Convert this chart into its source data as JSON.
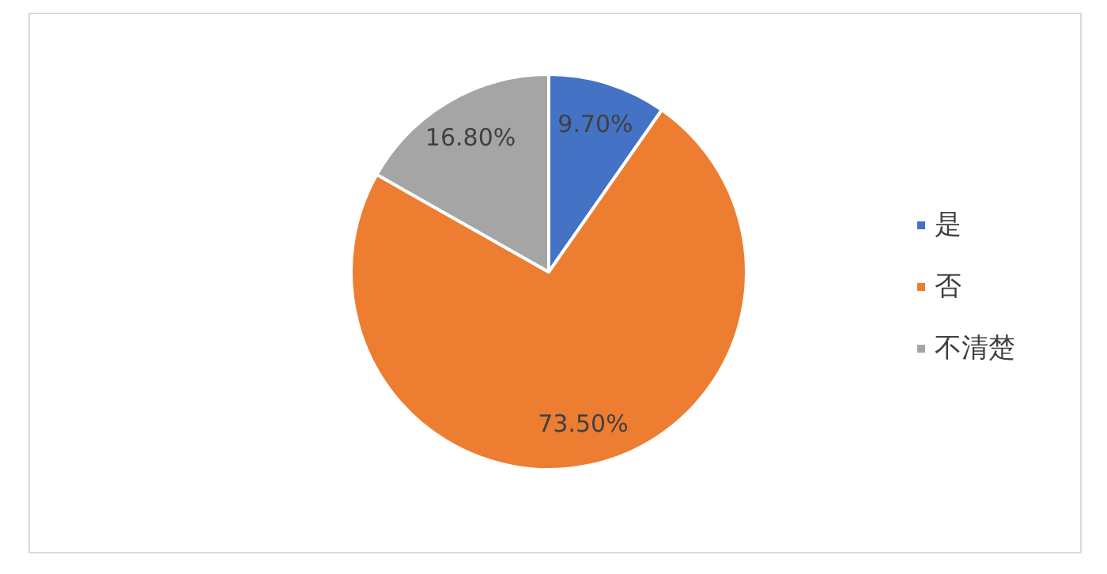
{
  "chart_data": {
    "type": "pie",
    "categories": [
      "是",
      "否",
      "不清楚"
    ],
    "values": [
      9.7,
      73.5,
      16.8
    ],
    "colors": [
      "#4472c4",
      "#ed7d31",
      "#a5a5a5"
    ],
    "value_labels": [
      "9.70%",
      "73.50%",
      "16.80%"
    ],
    "legend": "right"
  }
}
